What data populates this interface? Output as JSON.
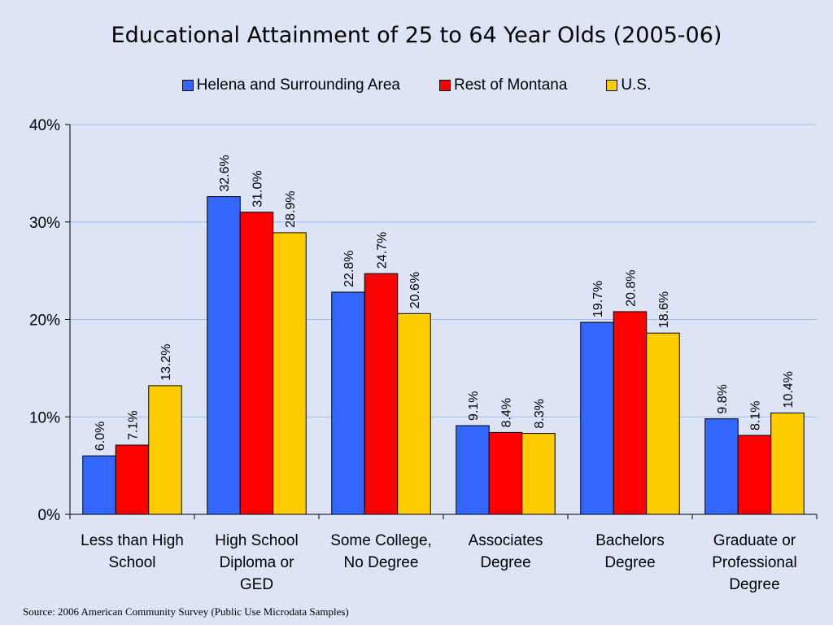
{
  "chart_data": {
    "type": "bar",
    "title": "Educational Attainment of 25 to 64 Year Olds (2005-06)",
    "categories": [
      [
        "Less than High",
        "School"
      ],
      [
        "High School",
        "Diploma or",
        "GED"
      ],
      [
        "Some College,",
        "No Degree"
      ],
      [
        "Associates",
        "Degree"
      ],
      [
        "Bachelors",
        "Degree"
      ],
      [
        "Graduate or",
        "Professional",
        "Degree"
      ]
    ],
    "series": [
      {
        "name": "Helena and Surrounding Area",
        "color": "#3366ff",
        "values": [
          6.0,
          32.6,
          22.8,
          9.1,
          19.7,
          9.8
        ],
        "labels": [
          "6.0%",
          "32.6%",
          "22.8%",
          "9.1%",
          "19.7%",
          "9.8%"
        ]
      },
      {
        "name": "Rest of Montana",
        "color": "#ff0000",
        "values": [
          7.1,
          31.0,
          24.7,
          8.4,
          20.8,
          8.1
        ],
        "labels": [
          "7.1%",
          "31.0%",
          "24.7%",
          "8.4%",
          "20.8%",
          "8.1%"
        ]
      },
      {
        "name": "U.S.",
        "color": "#ffcc00",
        "values": [
          13.2,
          28.9,
          20.6,
          8.3,
          18.6,
          10.4
        ],
        "labels": [
          "13.2%",
          "28.9%",
          "20.6%",
          "8.3%",
          "18.6%",
          "10.4%"
        ]
      }
    ],
    "yticks": [
      0,
      10,
      20,
      30,
      40
    ],
    "ytick_labels": [
      "0%",
      "10%",
      "20%",
      "30%",
      "40%"
    ],
    "ylim": [
      0,
      40
    ],
    "grid": true,
    "legend_position": "top"
  },
  "source_note": "Source: 2006 American Community Survey (Public Use Microdata Samples)"
}
